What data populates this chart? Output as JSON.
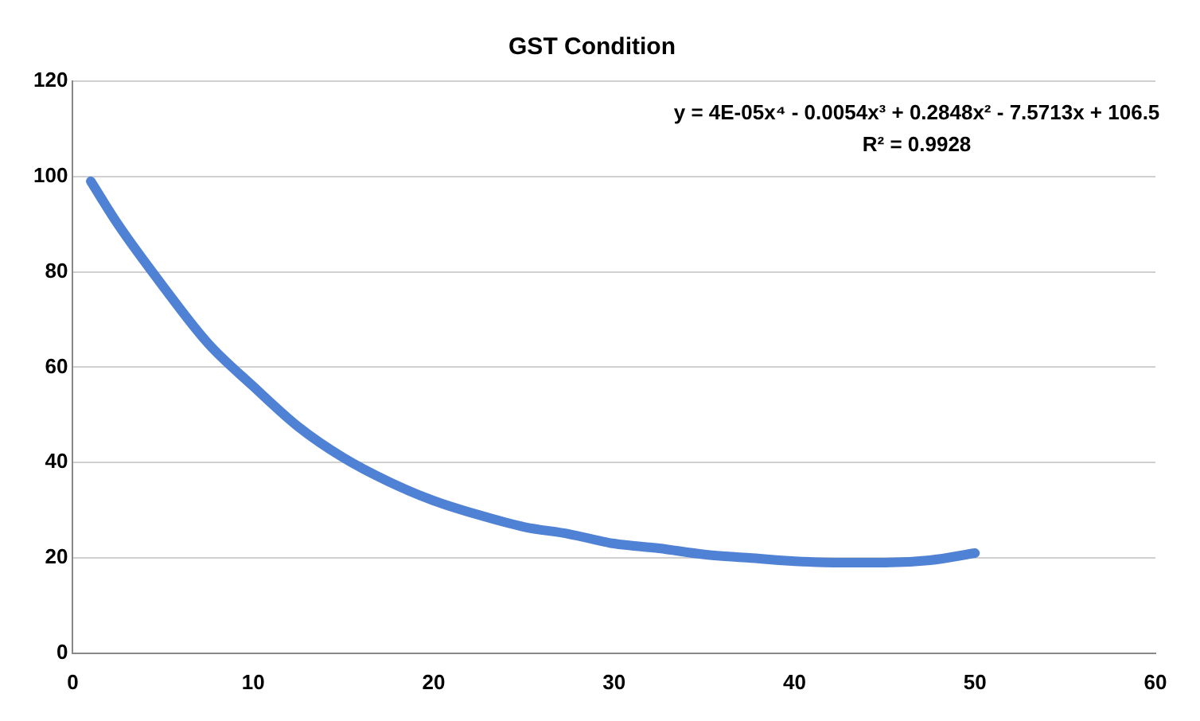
{
  "chart_data": {
    "type": "line",
    "title": "GST Condition",
    "x": [
      1,
      2.5,
      5,
      7.5,
      10,
      12.5,
      15,
      17.5,
      20,
      22.5,
      25,
      27.5,
      30,
      32.5,
      35,
      37.5,
      40,
      42.5,
      45,
      47.5,
      50
    ],
    "series": [
      {
        "color": "#4f81d4",
        "values": [
          99,
          90,
          77,
          65,
          56,
          47.5,
          41,
          36,
          32,
          29,
          26.5,
          25,
          23,
          22,
          20.7,
          20,
          19.3,
          19,
          19,
          19.5,
          21
        ]
      }
    ],
    "xlim": [
      0,
      60
    ],
    "xticks": [
      0,
      10,
      20,
      30,
      40,
      50,
      60
    ],
    "ylim": [
      0,
      120
    ],
    "yticks": [
      0,
      20,
      40,
      60,
      80,
      100,
      120
    ],
    "grid": "y",
    "legend": false,
    "marker": "none",
    "line_style": "solid",
    "annotations": [
      "y = 4E-05x⁴ - 0.0054x³ + 0.2848x² - 7.5713x + 106.5",
      "R² = 0.9928"
    ]
  }
}
